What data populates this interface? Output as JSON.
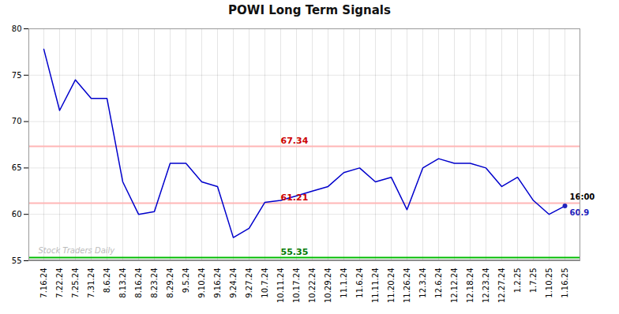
{
  "chart_data": {
    "type": "line",
    "title": "POWI Long Term Signals",
    "categories": [
      "7.16.24",
      "7.22.24",
      "7.25.24",
      "7.31.24",
      "8.6.24",
      "8.13.24",
      "8.16.24",
      "8.23.24",
      "8.29.24",
      "9.5.24",
      "9.10.24",
      "9.16.24",
      "9.24.24",
      "9.27.24",
      "10.7.24",
      "10.11.24",
      "10.17.24",
      "10.22.24",
      "10.29.24",
      "11.1.24",
      "11.6.24",
      "11.11.24",
      "11.20.24",
      "11.26.24",
      "12.3.24",
      "12.6.24",
      "12.12.24",
      "12.18.24",
      "12.23.24",
      "12.27.24",
      "1.2.25",
      "1.7.25",
      "1.10.25",
      "1.16.25"
    ],
    "values": [
      77.8,
      71.2,
      74.5,
      72.5,
      72.5,
      63.5,
      60.0,
      60.3,
      65.5,
      65.5,
      63.5,
      63.0,
      57.5,
      58.5,
      61.3,
      61.5,
      62.0,
      62.5,
      63.0,
      64.5,
      65.0,
      63.5,
      64.0,
      60.5,
      65.0,
      66.0,
      65.5,
      65.5,
      65.0,
      63.0,
      64.0,
      61.5,
      60.0,
      60.9
    ],
    "color": "#0000cc",
    "ylim": [
      55,
      80
    ],
    "yticks": [
      55,
      60,
      65,
      70,
      75,
      80
    ],
    "grid": true,
    "hlines": [
      {
        "value": 67.34,
        "color": "#ffb6b6",
        "label": "67.34",
        "label_color": "#cc0000"
      },
      {
        "value": 61.21,
        "color": "#ffb6b6",
        "label": "61.21",
        "label_color": "#cc0000"
      },
      {
        "value": 55.35,
        "color": "#00bb00",
        "label": "55.35",
        "label_color": "#007700"
      },
      {
        "value": 55.05,
        "color": "#555555"
      }
    ],
    "last_point": {
      "label": "16:00",
      "value": 60.9,
      "color": "#2222bb"
    },
    "watermark": {
      "text": "Stock Traders Daily",
      "color": "#bbbbbb"
    }
  }
}
